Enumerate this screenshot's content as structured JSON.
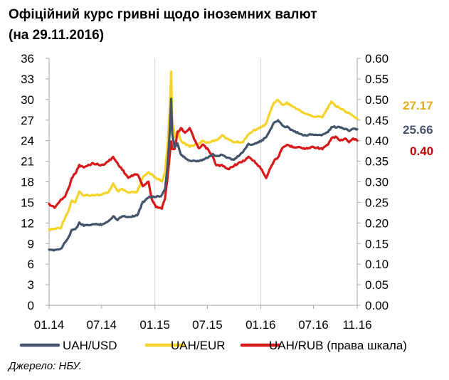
{
  "title": {
    "line1": "Офіційний курс гривні щодо іноземних валют",
    "line2": " (на 29.11.2016)"
  },
  "source": "Джерело: НБУ.",
  "colors": {
    "usd": "#44546A",
    "eur": "#F5D327",
    "rub": "#D7191C",
    "eur_label": "#E2AC1E",
    "usd_label": "#44546A",
    "rub_label": "#C00000",
    "grid": "#D0D0D0"
  },
  "chart_data": {
    "type": "line",
    "x_tick_labels": [
      "01.14",
      "07.14",
      "01.15",
      "07.15",
      "01.16",
      "07.16",
      "11.16"
    ],
    "x_range": [
      "2014-01-01",
      "2016-11-29"
    ],
    "y_left": {
      "ticks": [
        "0",
        "3",
        "6",
        "9",
        "12",
        "15",
        "18",
        "21",
        "24",
        "27",
        "30",
        "33",
        "36"
      ],
      "range": [
        0,
        36
      ]
    },
    "y_right": {
      "ticks": [
        "0.00",
        "0.05",
        "0.10",
        "0.15",
        "0.20",
        "0.25",
        "0.30",
        "0.35",
        "0.40",
        "0.45",
        "0.50",
        "0.55",
        "0.60"
      ],
      "range": [
        0,
        0.6
      ]
    },
    "grid": "vertical lines at Jan 2015 and Jan 2016",
    "end_labels": {
      "eur": "27.17",
      "usd": "25.66",
      "rub": "0.40"
    },
    "series": [
      {
        "name": "UAH/USD",
        "key": "usd",
        "axis": "left",
        "points": [
          [
            "2014-01-01",
            8.0
          ],
          [
            "2014-02-10",
            8.2
          ],
          [
            "2014-02-25",
            9.2
          ],
          [
            "2014-03-10",
            10.0
          ],
          [
            "2014-03-20",
            11.0
          ],
          [
            "2014-04-01",
            11.0
          ],
          [
            "2014-04-15",
            12.0
          ],
          [
            "2014-05-01",
            11.6
          ],
          [
            "2014-06-01",
            11.8
          ],
          [
            "2014-07-01",
            11.8
          ],
          [
            "2014-07-25",
            12.2
          ],
          [
            "2014-08-10",
            13.0
          ],
          [
            "2014-08-25",
            12.5
          ],
          [
            "2014-09-10",
            13.0
          ],
          [
            "2014-10-01",
            12.9
          ],
          [
            "2014-11-01",
            13.1
          ],
          [
            "2014-11-20",
            15.0
          ],
          [
            "2014-12-10",
            15.8
          ],
          [
            "2015-01-05",
            15.8
          ],
          [
            "2015-01-25",
            16.0
          ],
          [
            "2015-02-05",
            17.0
          ],
          [
            "2015-02-15",
            21.0
          ],
          [
            "2015-02-22",
            26.0
          ],
          [
            "2015-02-26",
            30.0
          ],
          [
            "2015-03-02",
            25.0
          ],
          [
            "2015-03-10",
            23.0
          ],
          [
            "2015-03-20",
            23.5
          ],
          [
            "2015-04-01",
            22.0
          ],
          [
            "2015-04-15",
            21.5
          ],
          [
            "2015-05-01",
            21.0
          ],
          [
            "2015-06-01",
            21.0
          ],
          [
            "2015-06-15",
            21.2
          ],
          [
            "2015-07-01",
            21.5
          ],
          [
            "2015-07-20",
            22.0
          ],
          [
            "2015-08-01",
            21.7
          ],
          [
            "2015-08-20",
            22.0
          ],
          [
            "2015-09-10",
            21.5
          ],
          [
            "2015-10-01",
            21.2
          ],
          [
            "2015-11-01",
            22.4
          ],
          [
            "2015-11-20",
            23.5
          ],
          [
            "2015-12-10",
            23.5
          ],
          [
            "2016-01-05",
            24.0
          ],
          [
            "2016-01-20",
            24.5
          ],
          [
            "2016-02-01",
            25.5
          ],
          [
            "2016-02-15",
            26.5
          ],
          [
            "2016-03-01",
            27.0
          ],
          [
            "2016-03-15",
            26.2
          ],
          [
            "2016-04-01",
            26.0
          ],
          [
            "2016-04-20",
            25.5
          ],
          [
            "2016-05-10",
            25.1
          ],
          [
            "2016-06-01",
            24.8
          ],
          [
            "2016-07-01",
            24.9
          ],
          [
            "2016-08-01",
            24.8
          ],
          [
            "2016-08-20",
            25.3
          ],
          [
            "2016-09-01",
            25.9
          ],
          [
            "2016-09-15",
            26.0
          ],
          [
            "2016-10-01",
            25.9
          ],
          [
            "2016-10-20",
            25.7
          ],
          [
            "2016-11-01",
            25.5
          ],
          [
            "2016-11-15",
            25.8
          ],
          [
            "2016-11-29",
            25.66
          ]
        ]
      },
      {
        "name": "UAH/EUR",
        "key": "eur",
        "axis": "left",
        "points": [
          [
            "2014-01-01",
            11.0
          ],
          [
            "2014-02-10",
            11.3
          ],
          [
            "2014-02-25",
            12.8
          ],
          [
            "2014-03-10",
            13.9
          ],
          [
            "2014-03-20",
            15.3
          ],
          [
            "2014-04-01",
            15.0
          ],
          [
            "2014-04-15",
            16.5
          ],
          [
            "2014-05-01",
            16.0
          ],
          [
            "2014-06-01",
            16.1
          ],
          [
            "2014-07-01",
            16.1
          ],
          [
            "2014-07-25",
            16.5
          ],
          [
            "2014-08-10",
            17.7
          ],
          [
            "2014-08-25",
            16.6
          ],
          [
            "2014-09-10",
            16.9
          ],
          [
            "2014-10-01",
            16.4
          ],
          [
            "2014-11-01",
            16.5
          ],
          [
            "2014-11-20",
            18.6
          ],
          [
            "2014-12-10",
            19.4
          ],
          [
            "2015-01-05",
            18.6
          ],
          [
            "2015-01-25",
            18.0
          ],
          [
            "2015-02-05",
            19.3
          ],
          [
            "2015-02-15",
            24.0
          ],
          [
            "2015-02-22",
            29.5
          ],
          [
            "2015-02-26",
            34.0
          ],
          [
            "2015-03-02",
            27.0
          ],
          [
            "2015-03-10",
            24.5
          ],
          [
            "2015-03-20",
            25.5
          ],
          [
            "2015-04-01",
            24.0
          ],
          [
            "2015-04-15",
            23.5
          ],
          [
            "2015-05-01",
            23.2
          ],
          [
            "2015-06-01",
            23.5
          ],
          [
            "2015-06-15",
            24.0
          ],
          [
            "2015-07-01",
            23.7
          ],
          [
            "2015-07-20",
            24.0
          ],
          [
            "2015-08-01",
            24.0
          ],
          [
            "2015-08-20",
            24.8
          ],
          [
            "2015-09-10",
            24.2
          ],
          [
            "2015-10-01",
            23.8
          ],
          [
            "2015-11-01",
            23.8
          ],
          [
            "2015-11-20",
            25.0
          ],
          [
            "2015-12-10",
            25.5
          ],
          [
            "2016-01-05",
            26.0
          ],
          [
            "2016-01-20",
            26.5
          ],
          [
            "2016-02-01",
            28.0
          ],
          [
            "2016-02-15",
            29.5
          ],
          [
            "2016-03-01",
            30.0
          ],
          [
            "2016-03-15",
            29.2
          ],
          [
            "2016-04-01",
            29.5
          ],
          [
            "2016-04-20",
            29.0
          ],
          [
            "2016-05-10",
            28.5
          ],
          [
            "2016-06-01",
            28.0
          ],
          [
            "2016-07-01",
            27.5
          ],
          [
            "2016-08-01",
            27.5
          ],
          [
            "2016-08-20",
            28.8
          ],
          [
            "2016-09-01",
            29.8
          ],
          [
            "2016-09-15",
            29.0
          ],
          [
            "2016-10-01",
            28.8
          ],
          [
            "2016-10-20",
            28.2
          ],
          [
            "2016-11-01",
            28.0
          ],
          [
            "2016-11-15",
            27.6
          ],
          [
            "2016-11-29",
            27.17
          ]
        ]
      },
      {
        "name": "UAH/RUB (права шкала)",
        "key": "rub",
        "axis": "right",
        "points": [
          [
            "2014-01-01",
            0.245
          ],
          [
            "2014-01-20",
            0.238
          ],
          [
            "2014-02-10",
            0.255
          ],
          [
            "2014-02-25",
            0.265
          ],
          [
            "2014-03-10",
            0.285
          ],
          [
            "2014-03-20",
            0.31
          ],
          [
            "2014-04-01",
            0.32
          ],
          [
            "2014-04-15",
            0.34
          ],
          [
            "2014-05-01",
            0.335
          ],
          [
            "2014-06-01",
            0.345
          ],
          [
            "2014-07-01",
            0.34
          ],
          [
            "2014-07-25",
            0.35
          ],
          [
            "2014-08-10",
            0.36
          ],
          [
            "2014-08-25",
            0.345
          ],
          [
            "2014-09-10",
            0.33
          ],
          [
            "2014-10-01",
            0.31
          ],
          [
            "2014-11-01",
            0.32
          ],
          [
            "2014-11-20",
            0.29
          ],
          [
            "2014-12-10",
            0.3
          ],
          [
            "2014-12-20",
            0.26
          ],
          [
            "2015-01-05",
            0.24
          ],
          [
            "2015-01-25",
            0.235
          ],
          [
            "2015-02-05",
            0.26
          ],
          [
            "2015-02-15",
            0.32
          ],
          [
            "2015-02-22",
            0.37
          ],
          [
            "2015-02-26",
            0.4
          ],
          [
            "2015-03-02",
            0.38
          ],
          [
            "2015-03-10",
            0.38
          ],
          [
            "2015-03-20",
            0.42
          ],
          [
            "2015-04-01",
            0.43
          ],
          [
            "2015-04-15",
            0.42
          ],
          [
            "2015-05-01",
            0.43
          ],
          [
            "2015-06-01",
            0.38
          ],
          [
            "2015-06-15",
            0.39
          ],
          [
            "2015-07-01",
            0.38
          ],
          [
            "2015-07-20",
            0.36
          ],
          [
            "2015-08-01",
            0.34
          ],
          [
            "2015-08-20",
            0.34
          ],
          [
            "2015-09-10",
            0.33
          ],
          [
            "2015-10-01",
            0.34
          ],
          [
            "2015-11-01",
            0.35
          ],
          [
            "2015-11-20",
            0.36
          ],
          [
            "2015-12-10",
            0.35
          ],
          [
            "2016-01-05",
            0.33
          ],
          [
            "2016-01-20",
            0.31
          ],
          [
            "2016-02-01",
            0.33
          ],
          [
            "2016-02-15",
            0.35
          ],
          [
            "2016-03-01",
            0.36
          ],
          [
            "2016-03-15",
            0.38
          ],
          [
            "2016-04-01",
            0.39
          ],
          [
            "2016-04-20",
            0.385
          ],
          [
            "2016-05-10",
            0.385
          ],
          [
            "2016-06-01",
            0.38
          ],
          [
            "2016-07-01",
            0.385
          ],
          [
            "2016-08-01",
            0.38
          ],
          [
            "2016-08-20",
            0.39
          ],
          [
            "2016-09-01",
            0.405
          ],
          [
            "2016-09-15",
            0.41
          ],
          [
            "2016-10-01",
            0.4
          ],
          [
            "2016-10-20",
            0.405
          ],
          [
            "2016-11-01",
            0.395
          ],
          [
            "2016-11-15",
            0.405
          ],
          [
            "2016-11-29",
            0.4
          ]
        ]
      }
    ]
  }
}
